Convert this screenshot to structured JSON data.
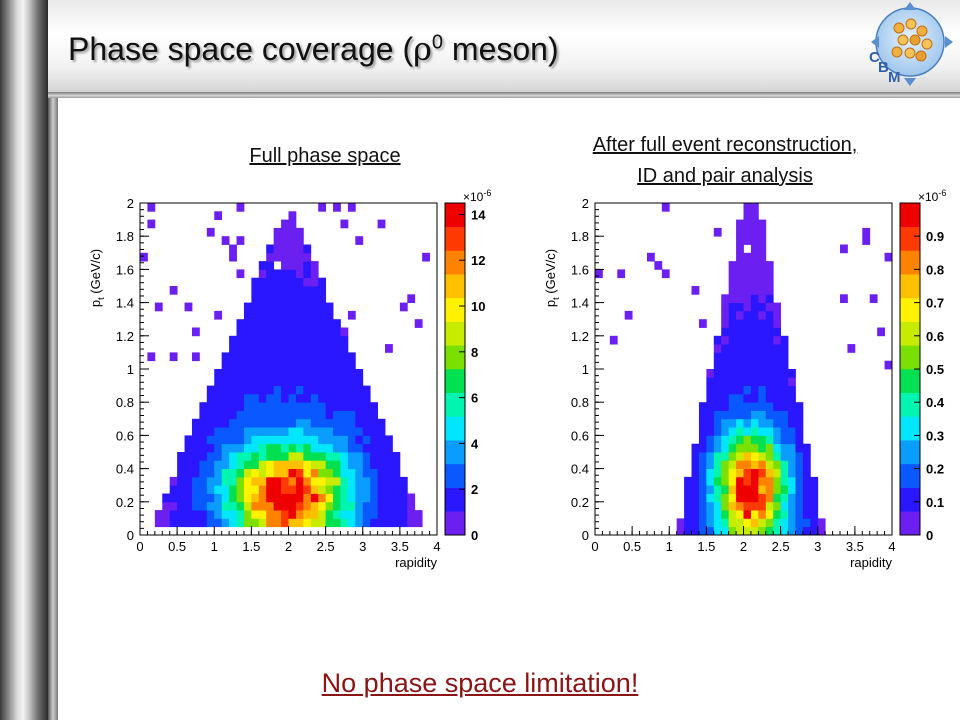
{
  "slide": {
    "title_main": "Phase space coverage (",
    "title_symbol": "ρ",
    "title_sup": "0",
    "title_end": " meson)",
    "logo_letters": [
      "C",
      "B",
      "M"
    ],
    "footer": "No phase space limitation!",
    "colors": {
      "footer": "#8b1414",
      "title": "#111111"
    }
  },
  "panels": [
    {
      "subtitle_lines": [
        "Full phase space"
      ]
    },
    {
      "subtitle_lines": [
        "After full event reconstruction,",
        "ID and pair analysis"
      ]
    }
  ],
  "chart_data": [
    {
      "type": "heatmap",
      "xlabel": "rapidity",
      "ylabel_main": "p",
      "ylabel_sub": "t",
      "ylabel_unit": " (GeV/c)",
      "xlim": [
        0,
        4
      ],
      "ylim": [
        0,
        2
      ],
      "x_ticks": [
        "0",
        "0.5",
        "1",
        "1.5",
        "2",
        "2.5",
        "3",
        "3.5",
        "4"
      ],
      "y_ticks": [
        "0",
        "0.2",
        "0.4",
        "0.6",
        "0.8",
        "1",
        "1.2",
        "1.4",
        "1.6",
        "1.8",
        "2"
      ],
      "z_max": 14.5,
      "z_ticks": [
        "0",
        "2",
        "4",
        "6",
        "8",
        "10",
        "12",
        "14"
      ],
      "z_exponent": "×10",
      "z_exponent_power": "-6",
      "grid": false,
      "legend": "colorbar-right",
      "bins": {
        "nx": 40,
        "ny": 40,
        "x_min": 0,
        "x_max": 4,
        "y_min": 0,
        "y_max": 2
      },
      "shape": {
        "center_y": 2.0,
        "peak_pt": 0.25,
        "width_pt": 0.18,
        "width_y0": 0.45,
        "width_y_slope": 0.18,
        "tail_pt": 0.9,
        "floor": 0.12
      },
      "edge": {
        "intercept": 2.0,
        "slope": 1.05,
        "min_pt": 0.05
      }
    },
    {
      "type": "heatmap",
      "xlabel": "rapidity",
      "ylabel_main": "p",
      "ylabel_sub": "t",
      "ylabel_unit": " (GeV/c)",
      "xlim": [
        0,
        4
      ],
      "ylim": [
        0,
        2
      ],
      "x_ticks": [
        "0",
        "0.5",
        "1",
        "1.5",
        "2",
        "2.5",
        "3",
        "3.5",
        "4"
      ],
      "y_ticks": [
        "0",
        "0.2",
        "0.4",
        "0.6",
        "0.8",
        "1",
        "1.2",
        "1.4",
        "1.6",
        "1.8",
        "2"
      ],
      "z_max": 1.0,
      "z_ticks": [
        "0",
        "0.1",
        "0.2",
        "0.3",
        "0.4",
        "0.5",
        "0.6",
        "0.7",
        "0.8",
        "0.9"
      ],
      "z_exponent": "×10",
      "z_exponent_power": "-6",
      "grid": false,
      "legend": "colorbar-right",
      "bins": {
        "nx": 40,
        "ny": 40,
        "x_min": 0,
        "x_max": 4,
        "y_min": 0,
        "y_max": 2
      },
      "shape": {
        "center_y": 2.1,
        "peak_pt": 0.3,
        "width_pt": 0.2,
        "width_y0": 0.28,
        "width_y_slope": 0.05,
        "tail_pt": 0.8,
        "floor": 0.1
      },
      "edge": {
        "intercept": 1.0,
        "slope": 0.45,
        "min_pt": 0.0,
        "y_lo": 1.0,
        "y_hi": 3.3
      }
    }
  ]
}
